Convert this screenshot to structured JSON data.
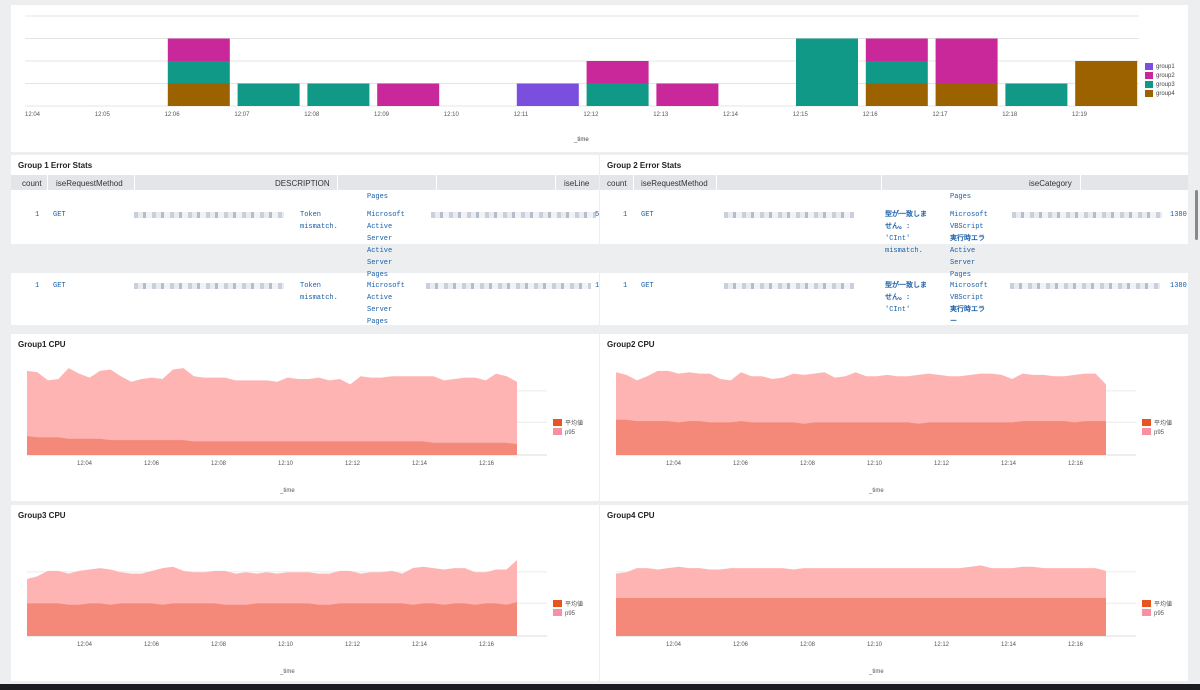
{
  "top_chart": {
    "x_ticks": [
      "12:04",
      "12:05",
      "12:06",
      "12:07",
      "12:08",
      "12:09",
      "12:10",
      "12:11",
      "12:12",
      "12:13",
      "12:14",
      "12:15",
      "12:16",
      "12:17",
      "12:18",
      "12:19"
    ],
    "xlabel": "_time",
    "legend": [
      "group1",
      "group2",
      "group3",
      "group4"
    ],
    "colors": {
      "group1": "#7b4fdd",
      "group2": "#c8289a",
      "group3": "#119987",
      "group4": "#9c6200"
    }
  },
  "chart_data": [
    {
      "type": "bar",
      "stacked": true,
      "categories": [
        "12:04",
        "12:05",
        "12:06",
        "12:07",
        "12:08",
        "12:09",
        "12:10",
        "12:11",
        "12:12",
        "12:13",
        "12:14",
        "12:15",
        "12:16",
        "12:17",
        "12:18"
      ],
      "series": [
        {
          "name": "group4",
          "values": [
            0,
            1,
            0,
            0,
            0,
            0,
            0,
            0,
            0,
            0,
            0,
            1,
            1,
            0,
            2
          ]
        },
        {
          "name": "group3",
          "values": [
            0,
            1,
            1,
            1,
            0,
            0,
            0,
            1,
            0,
            0,
            3,
            1,
            0,
            1,
            0
          ]
        },
        {
          "name": "group2",
          "values": [
            0,
            1,
            0,
            0,
            1,
            0,
            0,
            1,
            1,
            0,
            0,
            1,
            2,
            0,
            0
          ]
        },
        {
          "name": "group1",
          "values": [
            0,
            0,
            0,
            0,
            0,
            0,
            1,
            0,
            0,
            0,
            0,
            0,
            0,
            0,
            0
          ]
        }
      ],
      "xlabel": "_time",
      "ylim": [
        0,
        4
      ],
      "grid": true,
      "legend_position": "right"
    },
    {
      "type": "area",
      "title": "Group1 CPU",
      "xlabel": "_time",
      "x_ticks": [
        "12:04",
        "12:06",
        "12:08",
        "12:10",
        "12:12",
        "12:14",
        "12:16"
      ],
      "series": [
        {
          "name": "平均値",
          "values": [
            14,
            13,
            13,
            13,
            12,
            12,
            12,
            12,
            11,
            11,
            11,
            11,
            11,
            11,
            11,
            11,
            10,
            10,
            10,
            10,
            10,
            10,
            10,
            10,
            10,
            10,
            10,
            10,
            10,
            10,
            10,
            10,
            10,
            10,
            10,
            10,
            10,
            10,
            10,
            9,
            9,
            9,
            9,
            9,
            9,
            9,
            9,
            8
          ]
        },
        {
          "name": "p95",
          "values": [
            62,
            61,
            55,
            56,
            64,
            60,
            57,
            62,
            63,
            58,
            54,
            56,
            57,
            56,
            63,
            64,
            58,
            57,
            57,
            57,
            55,
            55,
            55,
            55,
            54,
            57,
            56,
            56,
            57,
            55,
            56,
            52,
            58,
            57,
            57,
            58,
            58,
            58,
            58,
            58,
            55,
            56,
            57,
            57,
            55,
            60,
            58,
            54
          ]
        }
      ],
      "legend": [
        "平均値",
        "p95"
      ],
      "legend_position": "right"
    },
    {
      "type": "area",
      "title": "Group2 CPU",
      "xlabel": "_time",
      "x_ticks": [
        "12:04",
        "12:06",
        "12:08",
        "12:10",
        "12:12",
        "12:14",
        "12:16"
      ],
      "series": [
        {
          "name": "平均値",
          "values": [
            26,
            26,
            25,
            25,
            25,
            25,
            24,
            25,
            25,
            24,
            24,
            24,
            25,
            24,
            24,
            24,
            24,
            24,
            23,
            24,
            24,
            24,
            24,
            24,
            24,
            24,
            24,
            24,
            24,
            23,
            24,
            24,
            24,
            24,
            24,
            24,
            24,
            24,
            24,
            25,
            25,
            25,
            25,
            25,
            24,
            25,
            25,
            25
          ]
        },
        {
          "name": "p95",
          "values": [
            61,
            59,
            55,
            58,
            62,
            62,
            60,
            61,
            60,
            60,
            56,
            55,
            61,
            58,
            58,
            56,
            57,
            60,
            59,
            60,
            61,
            57,
            58,
            61,
            58,
            58,
            59,
            58,
            58,
            59,
            60,
            59,
            58,
            58,
            59,
            60,
            60,
            59,
            56,
            60,
            59,
            59,
            58,
            58,
            59,
            60,
            60,
            52
          ]
        }
      ],
      "legend": [
        "平均値",
        "p95"
      ],
      "legend_position": "right"
    },
    {
      "type": "area",
      "title": "Group3 CPU",
      "xlabel": "_time",
      "x_ticks": [
        "12:04",
        "12:06",
        "12:08",
        "12:10",
        "12:12",
        "12:14",
        "12:16"
      ],
      "series": [
        {
          "name": "平均値",
          "values": [
            24,
            24,
            24,
            24,
            23,
            23,
            24,
            24,
            23,
            24,
            24,
            24,
            24,
            23,
            24,
            24,
            24,
            24,
            24,
            23,
            23,
            23,
            24,
            24,
            24,
            24,
            24,
            24,
            23,
            23,
            24,
            24,
            24,
            24,
            24,
            24,
            24,
            23,
            24,
            24,
            23,
            24,
            24,
            23,
            24,
            24,
            23,
            25
          ]
        },
        {
          "name": "p95",
          "values": [
            42,
            44,
            48,
            48,
            46,
            48,
            49,
            50,
            49,
            47,
            46,
            46,
            48,
            50,
            51,
            48,
            47,
            47,
            48,
            48,
            46,
            47,
            46,
            47,
            46,
            47,
            47,
            47,
            46,
            46,
            48,
            48,
            46,
            47,
            47,
            48,
            46,
            50,
            51,
            50,
            49,
            50,
            50,
            47,
            47,
            49,
            49,
            56
          ]
        }
      ],
      "legend": [
        "平均値",
        "p95"
      ],
      "legend_position": "right"
    },
    {
      "type": "area",
      "title": "Group4 CPU",
      "xlabel": "_time",
      "x_ticks": [
        "12:04",
        "12:06",
        "12:08",
        "12:10",
        "12:12",
        "12:14",
        "12:16"
      ],
      "series": [
        {
          "name": "平均値",
          "values": [
            28,
            28,
            28,
            28,
            28,
            28,
            28,
            28,
            28,
            28,
            28,
            28,
            28,
            28,
            28,
            28,
            28,
            28,
            28,
            28,
            28,
            28,
            28,
            28,
            28,
            28,
            28,
            28,
            28,
            28,
            28,
            28,
            28,
            28,
            28,
            28,
            28,
            28,
            28,
            28,
            28,
            28,
            28,
            28,
            28,
            28,
            28,
            28
          ]
        },
        {
          "name": "p95",
          "values": [
            46,
            47,
            50,
            50,
            49,
            50,
            51,
            50,
            50,
            49,
            49,
            50,
            50,
            50,
            50,
            50,
            50,
            49,
            50,
            50,
            50,
            50,
            50,
            50,
            50,
            50,
            50,
            50,
            50,
            50,
            50,
            50,
            50,
            50,
            51,
            52,
            50,
            50,
            50,
            51,
            51,
            50,
            50,
            50,
            50,
            50,
            50,
            48
          ]
        }
      ],
      "legend": [
        "平均値",
        "p95"
      ],
      "legend_position": "right"
    }
  ],
  "cpu_common": {
    "ticks": [
      "12:04",
      "12:06",
      "12:08",
      "12:10",
      "12:12",
      "12:14",
      "12:16"
    ],
    "xlabel": "_time",
    "legend": [
      "平均値",
      "p95"
    ],
    "colors": {
      "avg_fill": "#f4897a",
      "p95_fill": "#ffb4b4",
      "avg_swatch": "#e8541f",
      "p95_swatch": "#f98fa0"
    }
  },
  "group1_table": {
    "title": "Group 1 Error Stats",
    "headers": [
      "count",
      "iseRequestMethod",
      "DESCRIPTION",
      "iseLine"
    ],
    "row1": {
      "count": "1",
      "method": "GET",
      "desc": [
        "Token",
        "mismatch."
      ],
      "pages_top": "Pages",
      "product": [
        "Microsoft",
        "Active",
        "Server",
        "Active",
        "Server",
        "Pages"
      ],
      "line": "5"
    },
    "row2": {
      "count": "1",
      "method": "GET",
      "desc": [
        "Token",
        "mismatch."
      ],
      "product": [
        "Microsoft",
        "Active",
        "Server",
        "Pages"
      ],
      "line": "1"
    }
  },
  "group2_table": {
    "title": "Group 2 Error Stats",
    "headers": [
      "count",
      "iseRequestMethod",
      "iseCategory"
    ],
    "row1": {
      "count": "1",
      "method": "GET",
      "desc": [
        "型が一致しま",
        "せん。:",
        "'CInt'",
        "mismatch."
      ],
      "pages_top": "Pages",
      "product": [
        "Microsoft",
        "VBScript",
        "実行時エラ",
        "Active",
        "Server",
        "Pages"
      ],
      "line": "1380"
    },
    "row2": {
      "count": "1",
      "method": "GET",
      "desc": [
        "型が一致しま",
        "せん。:",
        "'CInt'"
      ],
      "product": [
        "Microsoft",
        "VBScript",
        "実行時エラ",
        "ー"
      ],
      "line": "1380"
    }
  }
}
